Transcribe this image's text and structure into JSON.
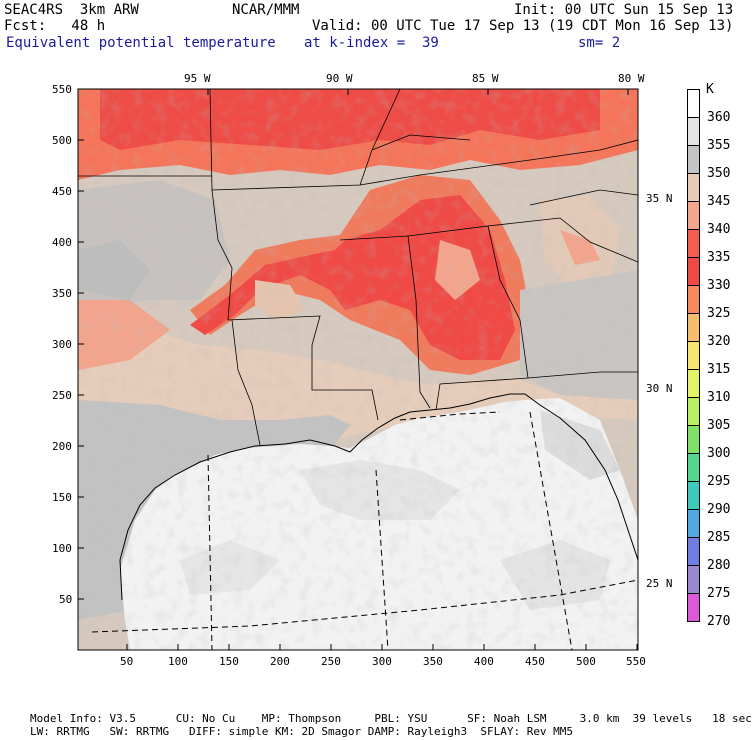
{
  "header": {
    "left_line1": "SEAC4RS  3km ARW",
    "center_line1": "NCAR/MMM",
    "right_line1": "Init: 00 UTC Sun 15 Sep 13",
    "left_line2": "Fcst:   48 h",
    "right_line2": "Valid: 00 UTC Tue 17 Sep 13 (19 CDT Mon 16 Sep 13)",
    "field_name": "Equivalent potential temperature",
    "level": "at k-index =  39",
    "smoothing": "sm= 2"
  },
  "longitude_labels": [
    "95 W",
    "90 W",
    "85 W",
    "80 W"
  ],
  "latitude_labels": [
    "35 N",
    "30 N",
    "25 N"
  ],
  "y_ticks": [
    "550",
    "500",
    "450",
    "400",
    "350",
    "300",
    "250",
    "200",
    "150",
    "100",
    "50"
  ],
  "x_ticks": [
    "50",
    "100",
    "150",
    "200",
    "250",
    "300",
    "350",
    "400",
    "450",
    "500",
    "550"
  ],
  "colorbar": {
    "unit": "K",
    "levels": [
      "360",
      "355",
      "350",
      "345",
      "340",
      "335",
      "330",
      "325",
      "320",
      "315",
      "310",
      "305",
      "300",
      "295",
      "290",
      "285",
      "280",
      "275",
      "270"
    ],
    "colors": [
      "#ffffff",
      "#e3e3e3",
      "#c4c4c4",
      "#e8cbb6",
      "#f3a68e",
      "#f25e50",
      "#ee4a45",
      "#f58a5a",
      "#f7bd6e",
      "#f5e56e",
      "#e4f26a",
      "#b8ee62",
      "#80e068",
      "#55d68e",
      "#40c8b8",
      "#52a8e2",
      "#6f7ee0",
      "#9b86d0",
      "#dc5ad8"
    ]
  },
  "footer": {
    "line1": "Model Info: V3.5      CU: No Cu    MP: Thompson     PBL: YSU      SF: Noah LSM     3.0 km  39 levels   18 sec",
    "line2": "LW: RRTMG   SW: RRTMG   DIFF: simple KM: 2D Smagor DAMP: Rayleigh3  SFLAY: Rev MM5"
  },
  "colors": {
    "gulf_water": "#f2f2f2",
    "land_base": "#d7c7bb",
    "warm_core": "#ef4a45",
    "warm_band": "#f47c60",
    "boundary_line": "#000000"
  }
}
